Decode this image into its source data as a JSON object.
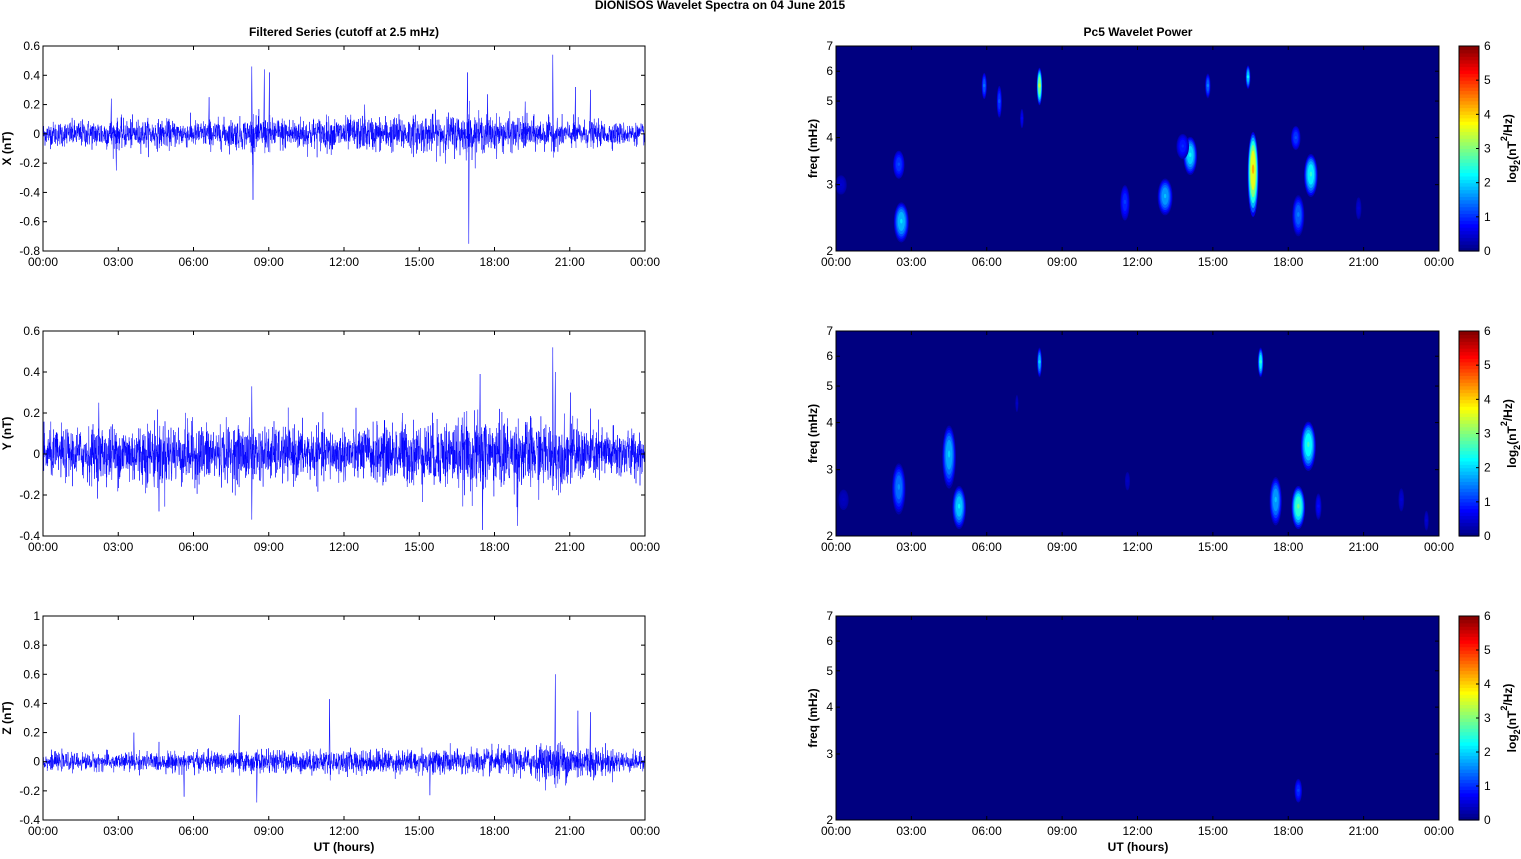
{
  "figure_title": "DIONISOS Wavelet Spectra on 04 June      2015",
  "left_column_title": "Filtered Series (cutoff at 2.5 mHz)",
  "right_column_title": "Pc5 Wavelet Power",
  "xlabel": "UT (hours)",
  "time_ticks": [
    "00:00",
    "03:00",
    "06:00",
    "09:00",
    "12:00",
    "15:00",
    "18:00",
    "21:00",
    "00:00"
  ],
  "colors": {
    "trace": "#0000ff",
    "background": "#ffffff",
    "axis": "#000000"
  },
  "chart_data": [
    {
      "type": "line",
      "panel": "X",
      "ylabel": "X (nT)",
      "x_range_hours": [
        0,
        24
      ],
      "ylim": [
        -0.8,
        0.6
      ],
      "yticks": [
        "0.6",
        "0.4",
        "0.2",
        "0",
        "-0.2",
        "-0.4",
        "-0.6",
        "-0.8"
      ],
      "noise_amplitude": 0.06,
      "envelope": [
        [
          0,
          0.07
        ],
        [
          2.5,
          0.09
        ],
        [
          6,
          0.08
        ],
        [
          9,
          0.1
        ],
        [
          13,
          0.1
        ],
        [
          16.5,
          0.12
        ],
        [
          20,
          0.09
        ],
        [
          24,
          0.06
        ]
      ],
      "spikes": [
        [
          2.7,
          0.24
        ],
        [
          2.9,
          -0.25
        ],
        [
          6.6,
          0.25
        ],
        [
          8.3,
          0.46
        ],
        [
          8.35,
          -0.45
        ],
        [
          8.8,
          0.44
        ],
        [
          9.0,
          0.42
        ],
        [
          16.9,
          0.42
        ],
        [
          16.95,
          -0.75
        ],
        [
          17.7,
          0.27
        ],
        [
          20.3,
          0.54
        ],
        [
          21.2,
          0.32
        ],
        [
          21.8,
          0.3
        ],
        [
          19.2,
          0.22
        ],
        [
          12.8,
          0.2
        ]
      ]
    },
    {
      "type": "line",
      "panel": "Y",
      "ylabel": "Y (nT)",
      "x_range_hours": [
        0,
        24
      ],
      "ylim": [
        -0.4,
        0.6
      ],
      "yticks": [
        "0.6",
        "0.4",
        "0.2",
        "0",
        "-0.2",
        "-0.4"
      ],
      "noise_amplitude": 0.1,
      "envelope": [
        [
          0,
          0.1
        ],
        [
          4.5,
          0.14
        ],
        [
          8,
          0.12
        ],
        [
          12,
          0.11
        ],
        [
          17.5,
          0.16
        ],
        [
          19,
          0.15
        ],
        [
          24,
          0.1
        ]
      ],
      "spikes": [
        [
          2.2,
          0.25
        ],
        [
          4.6,
          -0.28
        ],
        [
          8.3,
          0.33
        ],
        [
          8.3,
          -0.32
        ],
        [
          17.4,
          0.39
        ],
        [
          17.5,
          -0.37
        ],
        [
          18.9,
          -0.35
        ],
        [
          20.3,
          0.52
        ],
        [
          20.4,
          0.4
        ],
        [
          21.0,
          0.3
        ],
        [
          24.0,
          0.41
        ],
        [
          14.3,
          0.2
        ]
      ]
    },
    {
      "type": "line",
      "panel": "Z",
      "ylabel": "Z (nT)",
      "x_range_hours": [
        0,
        24
      ],
      "ylim": [
        -0.4,
        1.0
      ],
      "yticks": [
        "1",
        "0.8",
        "0.6",
        "0.4",
        "0.2",
        "0",
        "-0.2",
        "-0.4"
      ],
      "noise_amplitude": 0.05,
      "envelope": [
        [
          0,
          0.05
        ],
        [
          6,
          0.06
        ],
        [
          12,
          0.07
        ],
        [
          19,
          0.08
        ],
        [
          20.5,
          0.12
        ],
        [
          22,
          0.09
        ],
        [
          24,
          0.05
        ]
      ],
      "spikes": [
        [
          5.6,
          -0.24
        ],
        [
          7.8,
          0.32
        ],
        [
          8.5,
          -0.28
        ],
        [
          11.4,
          0.43
        ],
        [
          15.4,
          -0.23
        ],
        [
          20.4,
          0.6
        ],
        [
          20.5,
          -0.15
        ],
        [
          21.3,
          0.35
        ],
        [
          21.8,
          0.34
        ],
        [
          3.6,
          0.2
        ]
      ]
    },
    {
      "type": "heatmap",
      "panel": "X",
      "title": "Pc5 Wavelet Power",
      "x_range_hours": [
        0,
        24
      ],
      "ylabel": "freq (mHz)",
      "yscale": "log",
      "ylim_mHz": [
        2,
        7
      ],
      "yticks": [
        "7",
        "6",
        "5",
        "4",
        "3",
        "2"
      ],
      "colorbar": {
        "label": "log2(nT2/Hz)",
        "range": [
          0,
          6
        ],
        "ticks": [
          "6",
          "5",
          "4",
          "3",
          "2",
          "1",
          "0"
        ]
      },
      "blobs": [
        {
          "t": 2.6,
          "f": 2.4,
          "power": 2.1,
          "dt": 0.22,
          "df": 0.28
        },
        {
          "t": 2.5,
          "f": 3.4,
          "power": 1.2,
          "dt": 0.18,
          "df": 0.3
        },
        {
          "t": 0.2,
          "f": 3.0,
          "power": 0.5,
          "dt": 0.2,
          "df": 0.2
        },
        {
          "t": 5.9,
          "f": 5.5,
          "power": 1.4,
          "dt": 0.08,
          "df": 0.45
        },
        {
          "t": 6.5,
          "f": 5.0,
          "power": 1.2,
          "dt": 0.08,
          "df": 0.5
        },
        {
          "t": 7.4,
          "f": 4.5,
          "power": 0.7,
          "dt": 0.06,
          "df": 0.3
        },
        {
          "t": 8.1,
          "f": 5.5,
          "power": 3.4,
          "dt": 0.08,
          "df": 0.6
        },
        {
          "t": 11.5,
          "f": 2.7,
          "power": 1.1,
          "dt": 0.15,
          "df": 0.3
        },
        {
          "t": 13.1,
          "f": 2.8,
          "power": 1.9,
          "dt": 0.22,
          "df": 0.3
        },
        {
          "t": 14.1,
          "f": 3.6,
          "power": 2.3,
          "dt": 0.2,
          "df": 0.4
        },
        {
          "t": 13.8,
          "f": 3.8,
          "power": 1.0,
          "dt": 0.2,
          "df": 0.3
        },
        {
          "t": 14.8,
          "f": 5.5,
          "power": 1.5,
          "dt": 0.08,
          "df": 0.4
        },
        {
          "t": 16.6,
          "f": 3.3,
          "power": 4.2,
          "dt": 0.16,
          "df": 0.8
        },
        {
          "t": 16.4,
          "f": 5.8,
          "power": 2.2,
          "dt": 0.07,
          "df": 0.4
        },
        {
          "t": 18.4,
          "f": 2.5,
          "power": 1.5,
          "dt": 0.18,
          "df": 0.3
        },
        {
          "t": 18.9,
          "f": 3.2,
          "power": 2.5,
          "dt": 0.2,
          "df": 0.4
        },
        {
          "t": 18.3,
          "f": 4.0,
          "power": 1.2,
          "dt": 0.15,
          "df": 0.3
        },
        {
          "t": 20.8,
          "f": 2.6,
          "power": 0.5,
          "dt": 0.1,
          "df": 0.2
        }
      ]
    },
    {
      "type": "heatmap",
      "panel": "Y",
      "x_range_hours": [
        0,
        24
      ],
      "ylabel": "freq (mHz)",
      "yscale": "log",
      "ylim_mHz": [
        2,
        7
      ],
      "yticks": [
        "7",
        "6",
        "5",
        "4",
        "3",
        "2"
      ],
      "colorbar": {
        "label": "log2(nT2/Hz)",
        "range": [
          0,
          6
        ],
        "ticks": [
          "6",
          "5",
          "4",
          "3",
          "2",
          "1",
          "0"
        ]
      },
      "blobs": [
        {
          "t": 2.5,
          "f": 2.7,
          "power": 1.6,
          "dt": 0.2,
          "df": 0.4
        },
        {
          "t": 0.3,
          "f": 2.5,
          "power": 0.4,
          "dt": 0.2,
          "df": 0.2
        },
        {
          "t": 4.5,
          "f": 3.3,
          "power": 2.0,
          "dt": 0.2,
          "df": 0.6
        },
        {
          "t": 4.9,
          "f": 2.4,
          "power": 2.2,
          "dt": 0.2,
          "df": 0.3
        },
        {
          "t": 8.1,
          "f": 5.8,
          "power": 2.0,
          "dt": 0.07,
          "df": 0.5
        },
        {
          "t": 7.2,
          "f": 4.5,
          "power": 0.4,
          "dt": 0.06,
          "df": 0.3
        },
        {
          "t": 11.6,
          "f": 2.8,
          "power": 0.4,
          "dt": 0.1,
          "df": 0.2
        },
        {
          "t": 16.9,
          "f": 5.8,
          "power": 2.5,
          "dt": 0.08,
          "df": 0.5
        },
        {
          "t": 17.5,
          "f": 2.5,
          "power": 1.9,
          "dt": 0.18,
          "df": 0.35
        },
        {
          "t": 18.4,
          "f": 2.4,
          "power": 2.9,
          "dt": 0.2,
          "df": 0.3
        },
        {
          "t": 18.8,
          "f": 3.5,
          "power": 2.6,
          "dt": 0.22,
          "df": 0.5
        },
        {
          "t": 19.2,
          "f": 2.4,
          "power": 0.8,
          "dt": 0.1,
          "df": 0.2
        },
        {
          "t": 22.5,
          "f": 2.5,
          "power": 0.5,
          "dt": 0.1,
          "df": 0.2
        },
        {
          "t": 23.5,
          "f": 2.2,
          "power": 0.5,
          "dt": 0.08,
          "df": 0.15
        }
      ]
    },
    {
      "type": "heatmap",
      "panel": "Z",
      "x_range_hours": [
        0,
        24
      ],
      "ylabel": "freq (mHz)",
      "yscale": "log",
      "ylim_mHz": [
        2,
        7
      ],
      "yticks": [
        "7",
        "6",
        "5",
        "4",
        "3",
        "2"
      ],
      "colorbar": {
        "label": "log2(nT2/Hz)",
        "range": [
          0,
          6
        ],
        "ticks": [
          "6",
          "5",
          "4",
          "3",
          "2",
          "1",
          "0"
        ]
      },
      "blobs": [
        {
          "t": 18.4,
          "f": 2.4,
          "power": 1.1,
          "dt": 0.12,
          "df": 0.18
        }
      ]
    }
  ]
}
